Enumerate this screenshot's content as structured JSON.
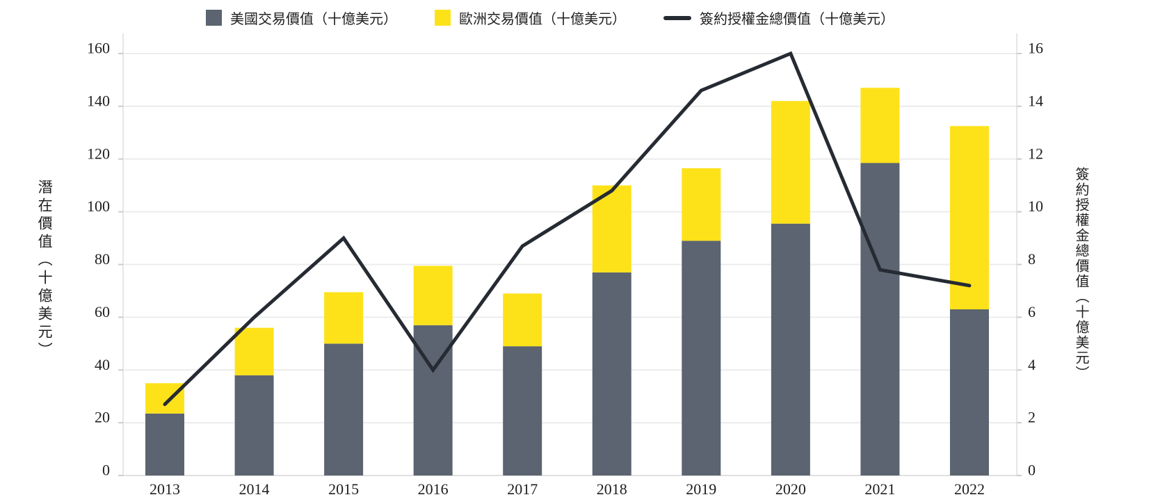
{
  "legend": {
    "items": [
      {
        "label": "美國交易價值（十億美元）",
        "swatch": "square",
        "color": "#5B6470"
      },
      {
        "label": "歐洲交易價值（十億美元）",
        "swatch": "square",
        "color": "#FDE21A"
      },
      {
        "label": "簽約授權金總價值（十億美元）",
        "swatch": "line",
        "color": "#262B33"
      }
    ],
    "position": "top"
  },
  "left_axis": {
    "title": "潛在價值（十億美元）",
    "ticks": [
      0,
      20,
      40,
      60,
      80,
      100,
      120,
      140,
      160
    ],
    "min": 0,
    "max": 160
  },
  "right_axis": {
    "title": "簽約授權金總價值（十億美元）",
    "ticks": [
      0,
      2,
      4,
      6,
      8,
      10,
      12,
      14,
      16
    ],
    "min": 0,
    "max": 16
  },
  "chart_data": {
    "type": "combo",
    "categories": [
      "2013",
      "2014",
      "2015",
      "2016",
      "2017",
      "2018",
      "2019",
      "2020",
      "2021",
      "2022"
    ],
    "series": [
      {
        "name": "美國交易價值（十億美元）",
        "chart": "bar",
        "stack": "deal-value",
        "axis": "left",
        "color": "#5B6470",
        "values": [
          23.5,
          38,
          50,
          57,
          49,
          77,
          89,
          95.5,
          118.5,
          63
        ]
      },
      {
        "name": "歐洲交易價值（十億美元）",
        "chart": "bar",
        "stack": "deal-value",
        "axis": "left",
        "color": "#FDE21A",
        "values": [
          11.5,
          18,
          19.5,
          22.5,
          20,
          33,
          27.5,
          46.5,
          28.5,
          69.5
        ]
      },
      {
        "name": "簽約授權金總價值（十億美元）",
        "chart": "line",
        "axis": "right",
        "color": "#262B33",
        "values": [
          2.7,
          6.0,
          9.0,
          4.0,
          8.7,
          10.8,
          14.6,
          16.0,
          7.8,
          7.2
        ]
      }
    ],
    "left_ylim": [
      0,
      160
    ],
    "right_ylim": [
      0,
      16
    ],
    "grid": true,
    "legend_position": "top"
  },
  "colors": {
    "background": "#FFFFFF",
    "grid_line": "#ECECEC",
    "baseline": "#E0E0E0",
    "axis_line": "#E6E6E6",
    "tick_mark": "#C7CDD4",
    "text": "#1E1E1E"
  }
}
